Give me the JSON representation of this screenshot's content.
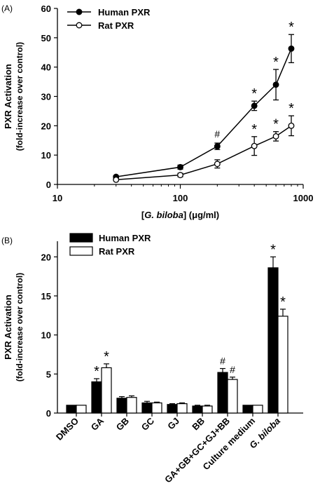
{
  "chart_data": [
    {
      "type": "line",
      "panel_label": "(A)",
      "xlabel_parts": [
        "[",
        "G. biloba",
        "] (μg/ml)"
      ],
      "ylabel_line1": "PXR Activation",
      "ylabel_line2": "(fold-increase over control)",
      "x_scale": "log",
      "xlim": [
        10,
        1000
      ],
      "ylim": [
        0,
        60
      ],
      "x_ticks": [
        10,
        100,
        1000
      ],
      "y_ticks": [
        0,
        10,
        20,
        30,
        40,
        50,
        60
      ],
      "legend_position": "top-left",
      "series": [
        {
          "name": "Human PXR",
          "marker": "filled-circle",
          "x": [
            30,
            100,
            200,
            400,
            600,
            800
          ],
          "y": [
            2.6,
            5.9,
            13.0,
            26.8,
            34.0,
            46.3
          ],
          "err": [
            0.4,
            0.7,
            1.1,
            1.6,
            5.2,
            4.8
          ],
          "annotations": [
            {
              "x": 200,
              "text": "#"
            },
            {
              "x": 400,
              "text": "*"
            },
            {
              "x": 600,
              "text": "*"
            },
            {
              "x": 800,
              "text": "*"
            }
          ]
        },
        {
          "name": "Rat PXR",
          "marker": "open-circle",
          "x": [
            30,
            100,
            200,
            400,
            600,
            800
          ],
          "y": [
            1.6,
            3.2,
            7.0,
            13.1,
            16.4,
            20.0
          ],
          "err": [
            0.3,
            0.6,
            1.4,
            3.2,
            1.6,
            3.4
          ],
          "annotations": [
            {
              "x": 400,
              "text": "*"
            },
            {
              "x": 600,
              "text": "*"
            },
            {
              "x": 800,
              "text": "*"
            }
          ]
        }
      ]
    },
    {
      "type": "bar",
      "panel_label": "(B)",
      "ylabel_line1": "PXR Activation",
      "ylabel_line2": "(fold-increase over control)",
      "ylim": [
        0,
        22
      ],
      "y_ticks": [
        0,
        5,
        10,
        15,
        20
      ],
      "legend_position": "top-left",
      "categories": [
        "DMSO",
        "GA",
        "GB",
        "GC",
        "GJ",
        "BB",
        "GA+GB+GC+GJ+BB",
        "Culture medium",
        "G. biloba"
      ],
      "italic_categories": [
        "G. biloba"
      ],
      "series": [
        {
          "name": "Human PXR",
          "fill": "#000000",
          "values": [
            1.0,
            4.0,
            1.9,
            1.3,
            1.1,
            0.9,
            5.2,
            1.0,
            18.6
          ],
          "err": [
            0,
            0.4,
            0.2,
            0.2,
            0.1,
            0.1,
            0.5,
            0,
            1.4
          ],
          "annotations": [
            {
              "index": 1,
              "text": "*"
            },
            {
              "index": 6,
              "text": "#"
            },
            {
              "index": 8,
              "text": "*"
            }
          ]
        },
        {
          "name": "Rat PXR",
          "fill": "#ffffff",
          "values": [
            1.0,
            5.8,
            2.0,
            1.3,
            1.2,
            0.9,
            4.3,
            1.0,
            12.4
          ],
          "err": [
            0,
            0.5,
            0.2,
            0.1,
            0.1,
            0.1,
            0.3,
            0,
            0.9
          ],
          "annotations": [
            {
              "index": 1,
              "text": "*"
            },
            {
              "index": 6,
              "text": "#"
            },
            {
              "index": 8,
              "text": "*"
            }
          ]
        }
      ]
    }
  ]
}
